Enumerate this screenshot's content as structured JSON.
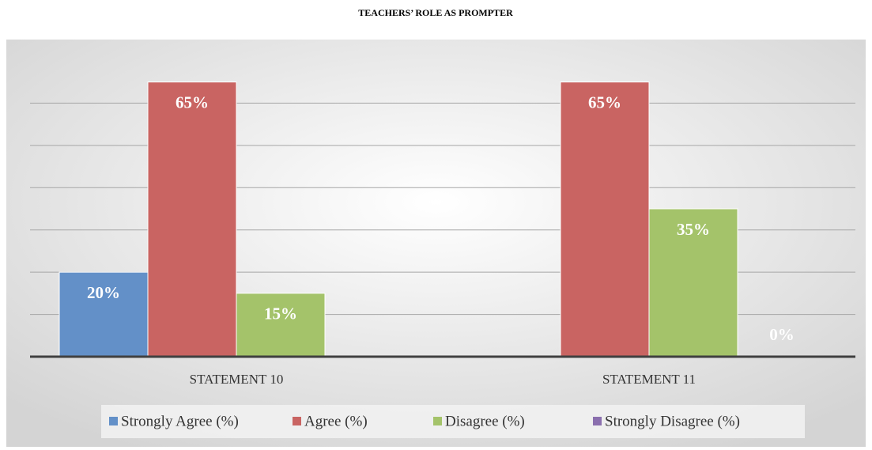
{
  "chart_data": {
    "type": "bar",
    "title": "TEACHERS’ ROLE AS PROMPTER",
    "categories": [
      "STATEMENT 10",
      "STATEMENT 11"
    ],
    "series": [
      {
        "name": "Strongly Agree (%)",
        "color": "#6390c8",
        "values": [
          20,
          null
        ],
        "value_labels": [
          "20%",
          null
        ]
      },
      {
        "name": "Agree (%)",
        "color": "#c96462",
        "values": [
          65,
          65
        ],
        "value_labels": [
          "65%",
          "65%"
        ]
      },
      {
        "name": "Disagree (%)",
        "color": "#a4c36a",
        "values": [
          15,
          35
        ],
        "value_labels": [
          "15%",
          "35%"
        ]
      },
      {
        "name": "Strongly Disagree (%)",
        "color": "#8a6fae",
        "values": [
          null,
          0
        ],
        "value_labels": [
          null,
          "0%"
        ]
      }
    ],
    "ylim": [
      0,
      70
    ],
    "yticks": [
      0,
      10,
      20,
      30,
      40,
      50,
      60
    ],
    "grid": true,
    "legend": "bottom"
  }
}
